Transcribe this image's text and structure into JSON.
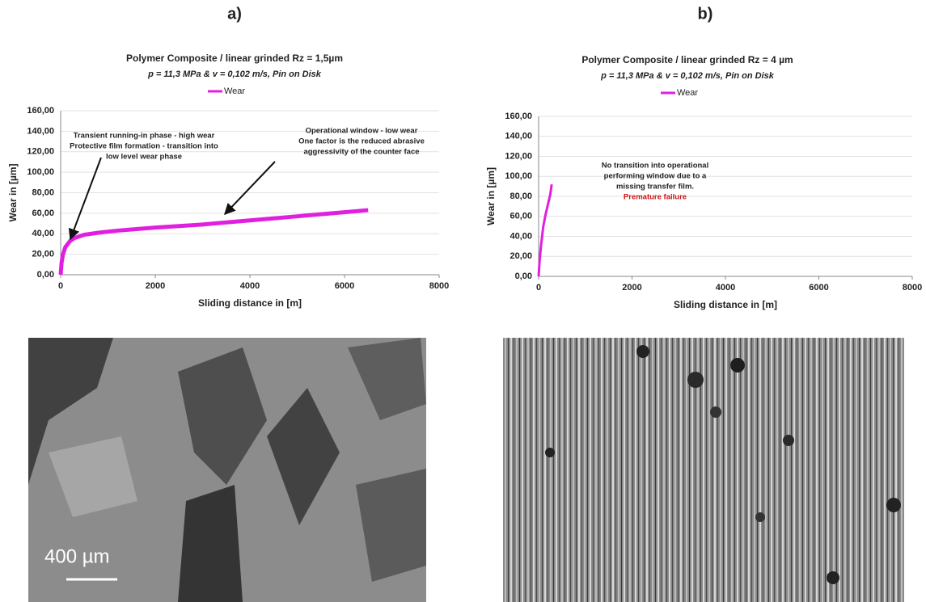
{
  "panels": [
    {
      "label": "a)",
      "scale_bar": "400 µm"
    },
    {
      "label": "b)"
    }
  ],
  "chart_data": [
    {
      "type": "line",
      "title": "Polymer Composite / linear grinded Rz = 1,5µm",
      "subtitle": "p = 11,3 MPa & v = 0,102 m/s, Pin on Disk",
      "x_label": "Sliding distance in [m]",
      "y_label": "Wear in [µm]",
      "x": [
        0,
        20,
        50,
        100,
        200,
        300,
        500,
        800,
        1200,
        1600,
        2000,
        2500,
        3000,
        3500,
        4000,
        4500,
        5000,
        5500,
        6000,
        6500
      ],
      "series": [
        {
          "name": "Wear",
          "color": "#e020e0",
          "values": [
            0,
            12,
            20,
            27,
            33,
            36,
            39,
            41,
            43,
            44.5,
            46,
            47.5,
            49,
            51,
            53,
            55,
            57,
            59,
            61,
            63
          ]
        }
      ],
      "xlim": [
        0,
        8000
      ],
      "xticks": [
        0,
        2000,
        4000,
        6000,
        8000
      ],
      "ylim": [
        0,
        160
      ],
      "yticks": [
        {
          "value": 0,
          "label": "0,00"
        },
        {
          "value": 20,
          "label": "20,00"
        },
        {
          "value": 40,
          "label": "40,00"
        },
        {
          "value": 60,
          "label": "60,00"
        },
        {
          "value": 80,
          "label": "80,00"
        },
        {
          "value": 100,
          "label": "100,00"
        },
        {
          "value": 120,
          "label": "120,00"
        },
        {
          "value": 140,
          "label": "140,00"
        },
        {
          "value": 160,
          "label": "160,00"
        }
      ],
      "grid": true,
      "legend": "top",
      "annotations": [
        {
          "lines": [
            "Transient running-in phase - high wear",
            "Protective film formation - transition into",
            "low level wear phase"
          ]
        },
        {
          "lines": [
            "Operational window - low wear",
            "One factor is the reduced abrasive",
            "aggressivity of the counter face"
          ]
        }
      ]
    },
    {
      "type": "line",
      "title": "Polymer Composite / linear grinded Rz = 4 µm",
      "subtitle": "p = 11,3 MPa & v = 0,102 m/s, Pin on Disk",
      "x_label": "Sliding distance in [m]",
      "y_label": "Wear in [µm]",
      "x": [
        0,
        20,
        50,
        100,
        150,
        200,
        250,
        280
      ],
      "series": [
        {
          "name": "Wear",
          "color": "#e020e0",
          "values": [
            0,
            15,
            30,
            50,
            62,
            72,
            82,
            92
          ]
        }
      ],
      "xlim": [
        0,
        8000
      ],
      "xticks": [
        0,
        2000,
        4000,
        6000,
        8000
      ],
      "ylim": [
        0,
        160
      ],
      "yticks": [
        {
          "value": 0,
          "label": "0,00"
        },
        {
          "value": 20,
          "label": "20,00"
        },
        {
          "value": 40,
          "label": "40,00"
        },
        {
          "value": 60,
          "label": "60,00"
        },
        {
          "value": 80,
          "label": "80,00"
        },
        {
          "value": 100,
          "label": "100,00"
        },
        {
          "value": 120,
          "label": "120,00"
        },
        {
          "value": 140,
          "label": "140,00"
        },
        {
          "value": 160,
          "label": "160,00"
        }
      ],
      "grid": true,
      "legend": "top",
      "annotations": [
        {
          "lines": [
            "No transition into operational",
            "performing window due to a",
            "missing transfer film."
          ],
          "highlight": "Premature failure",
          "highlight_color": "#d01010"
        }
      ]
    }
  ]
}
